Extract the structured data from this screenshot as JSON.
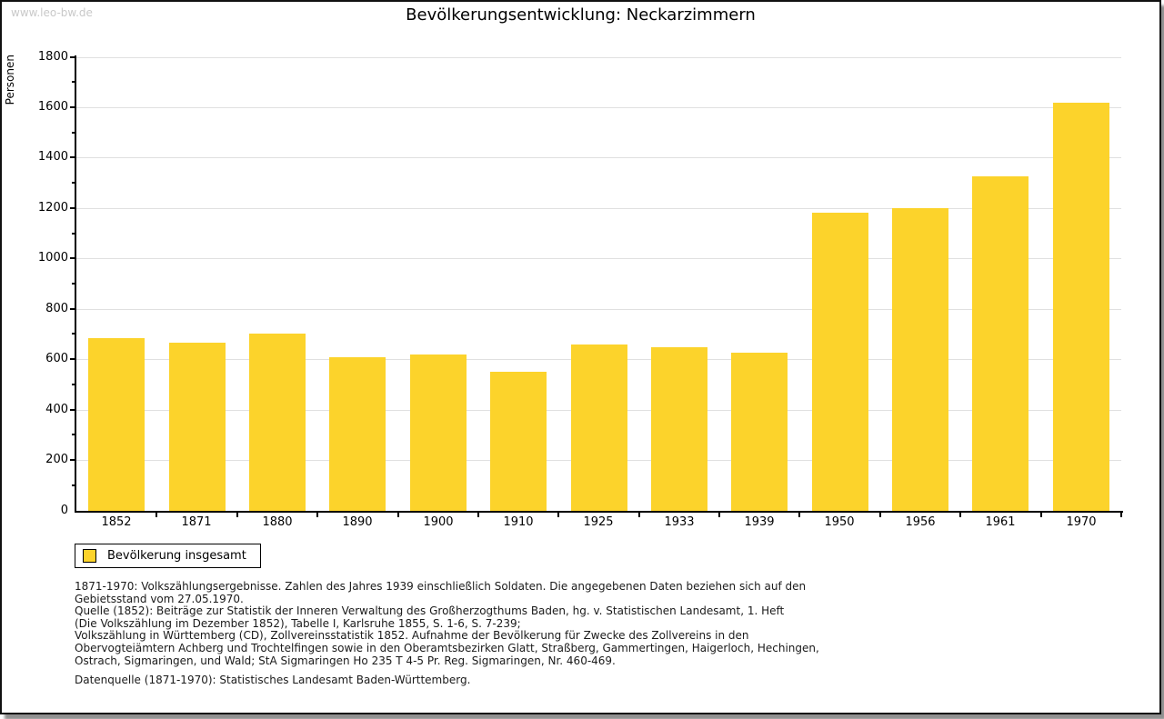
{
  "watermark": "www.leo-bw.de",
  "chart_data": {
    "type": "bar",
    "title": "Bevölkerungsentwicklung: Neckarzimmern",
    "xlabel": "",
    "ylabel": "Personen",
    "categories": [
      "1852",
      "1871",
      "1880",
      "1890",
      "1900",
      "1910",
      "1925",
      "1933",
      "1939",
      "1950",
      "1956",
      "1961",
      "1970"
    ],
    "values": [
      684,
      668,
      705,
      609,
      621,
      552,
      661,
      648,
      627,
      1184,
      1203,
      1327,
      1619
    ],
    "ylim": [
      0,
      1800
    ],
    "ytick_step": 200,
    "minor_tick_step": 100,
    "grid": true,
    "bar_color": "#FCD32B",
    "gridline_color": "#e0e0e0",
    "legend_position": "bottom-left",
    "legend": [
      {
        "label": "Bevölkerung insgesamt",
        "color": "#FCD32B"
      }
    ]
  },
  "footnotes": {
    "lines": [
      "1871-1970: Volkszählungsergebnisse. Zahlen des Jahres 1939 einschließlich Soldaten. Die angegebenen Daten beziehen sich auf den",
      "Gebietsstand vom 27.05.1970.",
      "Quelle (1852): Beiträge zur Statistik der Inneren Verwaltung des Großherzogthums Baden, hg. v. Statistischen Landesamt, 1. Heft",
      "(Die Volkszählung im Dezember 1852), Tabelle I, Karlsruhe 1855, S. 1-6, S. 7-239;",
      "Volkszählung in Württemberg (CD), Zollvereinsstatistik 1852. Aufnahme der Bevölkerung für Zwecke des Zollvereins in den",
      "Obervogteiämtern Achberg und Trochtelfingen sowie in den Oberamtsbezirken Glatt, Straßberg, Gammertingen, Haigerloch, Hechingen,",
      "Ostrach, Sigmaringen, und Wald; StA Sigmaringen Ho 235 T 4-5 Pr. Reg. Sigmaringen, Nr. 460-469."
    ],
    "datasource": "Datenquelle (1871-1970): Statistisches Landesamt Baden-Württemberg."
  }
}
